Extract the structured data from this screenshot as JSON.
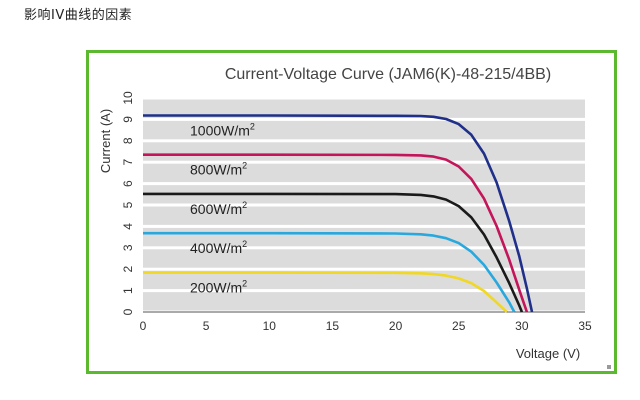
{
  "page": {
    "heading": "影响IV曲线的因素"
  },
  "colors": {
    "frame_border": "#5cb82e",
    "grid_band": "#dcdcdc",
    "series": [
      "#1f2f8a",
      "#c4145a",
      "#1a1a1a",
      "#29a8de",
      "#f0d824"
    ]
  },
  "chart_data": {
    "type": "line",
    "title": "Current-Voltage Curve (JAM6(K)-48-215/4BB)",
    "xlabel": "Voltage (V)",
    "ylabel": "Current (A)",
    "xlim": [
      0,
      35
    ],
    "ylim": [
      0,
      10
    ],
    "xticks": [
      "0",
      "5",
      "10",
      "15",
      "20",
      "25",
      "30",
      "35"
    ],
    "yticks": [
      "0",
      "1",
      "2",
      "3",
      "4",
      "5",
      "6",
      "7",
      "8",
      "9",
      "10"
    ],
    "grid": true,
    "series": [
      {
        "name": "1000W/m",
        "name_sup": "2",
        "color": "#1f2f8a",
        "points": [
          [
            0,
            9.18
          ],
          [
            10,
            9.18
          ],
          [
            20,
            9.17
          ],
          [
            22,
            9.16
          ],
          [
            23,
            9.12
          ],
          [
            24,
            9.02
          ],
          [
            25,
            8.78
          ],
          [
            26,
            8.28
          ],
          [
            27,
            7.4
          ],
          [
            28,
            6.05
          ],
          [
            29,
            4.25
          ],
          [
            29.8,
            2.6
          ],
          [
            30.4,
            1.1
          ],
          [
            30.8,
            0
          ]
        ]
      },
      {
        "name": "800W/m",
        "name_sup": "2",
        "color": "#c4145a",
        "points": [
          [
            0,
            7.35
          ],
          [
            10,
            7.35
          ],
          [
            20,
            7.34
          ],
          [
            22,
            7.32
          ],
          [
            23,
            7.26
          ],
          [
            24,
            7.12
          ],
          [
            25,
            6.8
          ],
          [
            26,
            6.22
          ],
          [
            27,
            5.3
          ],
          [
            28,
            4.02
          ],
          [
            29,
            2.45
          ],
          [
            29.9,
            0.85
          ],
          [
            30.4,
            0
          ]
        ]
      },
      {
        "name": "600W/m",
        "name_sup": "2",
        "color": "#1a1a1a",
        "points": [
          [
            0,
            5.52
          ],
          [
            10,
            5.52
          ],
          [
            20,
            5.51
          ],
          [
            22,
            5.47
          ],
          [
            23,
            5.4
          ],
          [
            24,
            5.25
          ],
          [
            25,
            4.95
          ],
          [
            26,
            4.42
          ],
          [
            27,
            3.62
          ],
          [
            28,
            2.55
          ],
          [
            29,
            1.35
          ],
          [
            29.8,
            0.3
          ],
          [
            30.0,
            0
          ]
        ]
      },
      {
        "name": "400W/m",
        "name_sup": "2",
        "color": "#29a8de",
        "points": [
          [
            0,
            3.68
          ],
          [
            10,
            3.68
          ],
          [
            20,
            3.67
          ],
          [
            22,
            3.63
          ],
          [
            23,
            3.57
          ],
          [
            24,
            3.45
          ],
          [
            25,
            3.22
          ],
          [
            26,
            2.82
          ],
          [
            27,
            2.2
          ],
          [
            28,
            1.38
          ],
          [
            29,
            0.45
          ],
          [
            29.4,
            0
          ]
        ]
      },
      {
        "name": "200W/m",
        "name_sup": "2",
        "color": "#f0d824",
        "points": [
          [
            0,
            1.84
          ],
          [
            10,
            1.84
          ],
          [
            20,
            1.83
          ],
          [
            22,
            1.81
          ],
          [
            23,
            1.77
          ],
          [
            24,
            1.7
          ],
          [
            25,
            1.57
          ],
          [
            26,
            1.35
          ],
          [
            27,
            0.98
          ],
          [
            28,
            0.45
          ],
          [
            28.8,
            0
          ]
        ]
      }
    ]
  }
}
